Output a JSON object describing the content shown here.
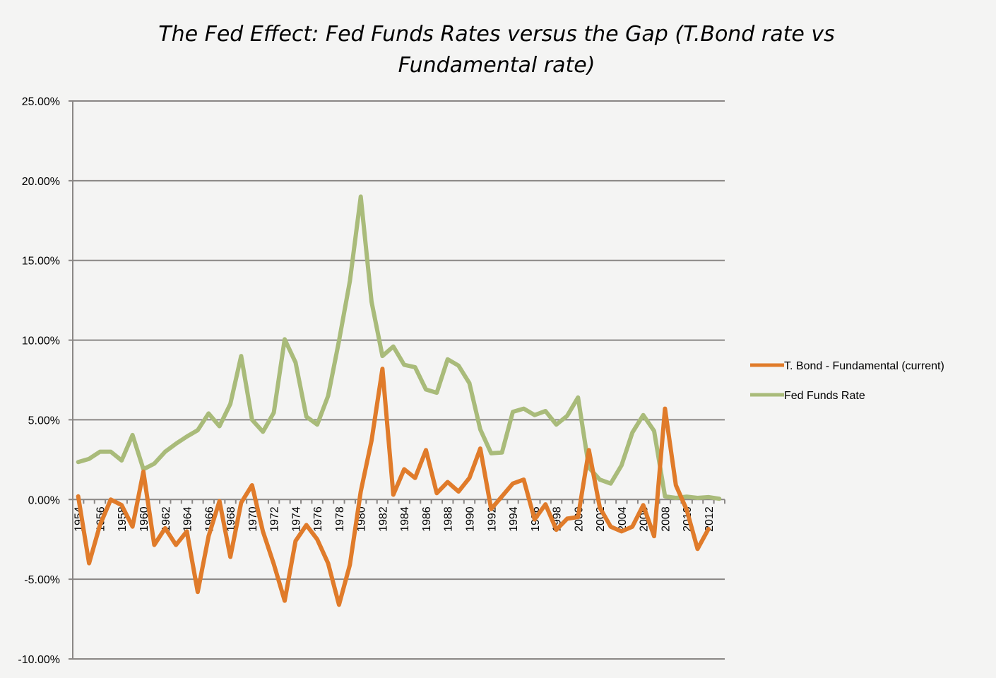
{
  "chart_data": {
    "type": "line",
    "title_lines": [
      "The Fed Effect: Fed Funds Rates versus the Gap (T.Bond rate vs",
      "Fundamental rate)"
    ],
    "xlabel": "",
    "ylabel": "",
    "ylim": [
      -0.1,
      0.25
    ],
    "yticks": [
      "25.00%",
      "20.00%",
      "15.00%",
      "10.00%",
      "5.00%",
      "0.00%",
      "-5.00%",
      "-10.00%"
    ],
    "ytick_values": [
      0.25,
      0.2,
      0.15,
      0.1,
      0.05,
      0,
      -0.05,
      -0.1
    ],
    "grid": "horizontal",
    "legend_position": "right",
    "x": [
      1954,
      1955,
      1956,
      1957,
      1958,
      1959,
      1960,
      1961,
      1962,
      1963,
      1964,
      1965,
      1966,
      1967,
      1968,
      1969,
      1970,
      1971,
      1972,
      1973,
      1974,
      1975,
      1976,
      1977,
      1978,
      1979,
      1980,
      1981,
      1982,
      1983,
      1984,
      1985,
      1986,
      1987,
      1988,
      1989,
      1990,
      1991,
      1992,
      1993,
      1994,
      1995,
      1996,
      1997,
      1998,
      1999,
      2000,
      2001,
      2002,
      2003,
      2004,
      2005,
      2006,
      2007,
      2008,
      2009,
      2010,
      2011,
      2012,
      2013
    ],
    "xtick_labels": [
      "1954",
      "1956",
      "1958",
      "1960",
      "1962",
      "1964",
      "1966",
      "1968",
      "1970",
      "1972",
      "1974",
      "1976",
      "1978",
      "1980",
      "1982",
      "1984",
      "1986",
      "1988",
      "1990",
      "1992",
      "1994",
      "1996",
      "1998",
      "2000",
      "2002",
      "2004",
      "2006",
      "2008",
      "2010",
      "2012"
    ],
    "series": [
      {
        "name": "T. Bond - Fundamental (current)",
        "color": "#e07b2a",
        "values": [
          0.002,
          -0.04,
          -0.016,
          0.0,
          -0.0035,
          -0.017,
          0.0175,
          -0.0285,
          -0.018,
          -0.0285,
          -0.02,
          -0.058,
          -0.023,
          -0.001,
          -0.036,
          -0.002,
          0.009,
          -0.02,
          -0.0405,
          -0.0635,
          -0.026,
          -0.016,
          -0.025,
          -0.04,
          -0.066,
          -0.041,
          0.005,
          0.037,
          0.082,
          0.003,
          0.019,
          0.0135,
          0.031,
          0.004,
          0.011,
          0.005,
          0.0135,
          0.032,
          -0.006,
          0.002,
          0.01,
          0.0125,
          -0.0125,
          -0.003,
          -0.019,
          -0.012,
          -0.011,
          0.031,
          -0.005,
          -0.017,
          -0.02,
          -0.017,
          -0.0035,
          -0.023,
          0.057,
          0.009,
          -0.0065,
          -0.031,
          -0.0185,
          null
        ]
      },
      {
        "name": "Fed Funds Rate",
        "color": "#a9bb7a",
        "values": [
          0.0235,
          0.0255,
          0.03,
          0.03,
          0.0245,
          0.0405,
          0.019,
          0.0225,
          0.03,
          0.035,
          0.0395,
          0.0435,
          0.054,
          0.046,
          0.06,
          0.09,
          0.05,
          0.0425,
          0.0545,
          0.1005,
          0.086,
          0.052,
          0.047,
          0.065,
          0.0995,
          0.137,
          0.19,
          0.124,
          0.09,
          0.096,
          0.0845,
          0.083,
          0.069,
          0.067,
          0.088,
          0.084,
          0.073,
          0.044,
          0.029,
          0.0295,
          0.055,
          0.057,
          0.053,
          0.0555,
          0.047,
          0.0525,
          0.064,
          0.02,
          0.0125,
          0.01,
          0.0215,
          0.042,
          0.053,
          0.043,
          0.002,
          0.001,
          0.0018,
          0.001,
          0.0015,
          0.0005
        ]
      }
    ]
  }
}
